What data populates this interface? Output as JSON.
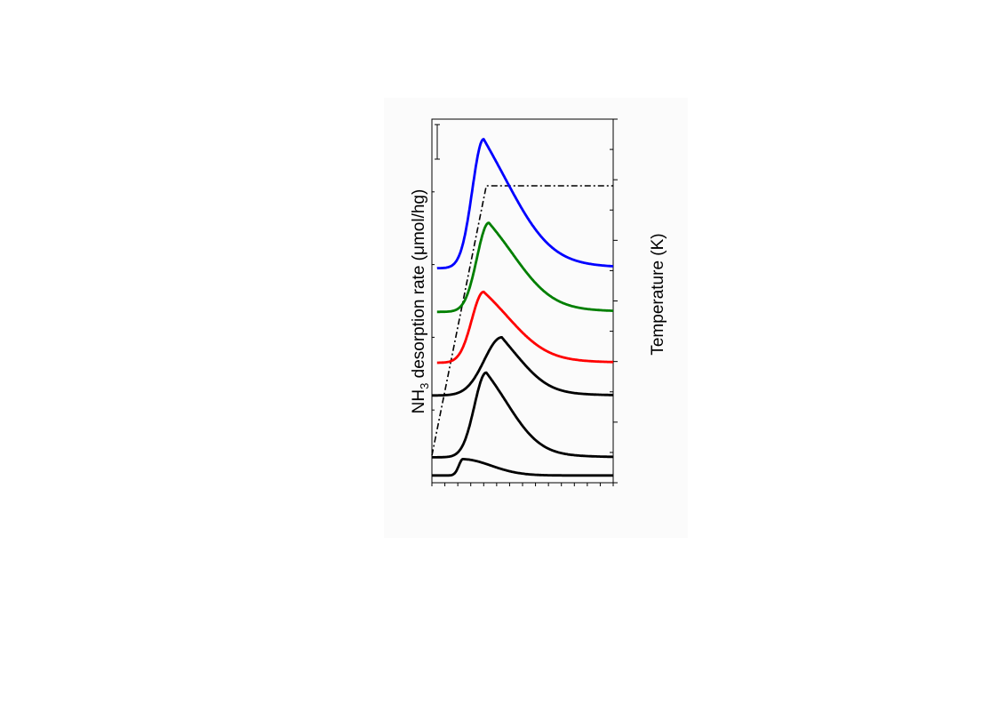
{
  "chart_data": {
    "type": "line",
    "ylabel_left_main": "NH",
    "ylabel_left_sub": "3",
    "ylabel_left_rest": " desorption rate (",
    "ylabel_left_mu": "μ",
    "ylabel_left_end": "mol/hg)",
    "ylabel_right": "Temperature (K)",
    "xlim": [
      0,
      70
    ],
    "ylim": [
      0,
      100
    ],
    "y2lim": [
      0,
      12
    ],
    "x_minor_ticks": [
      0,
      5,
      10,
      15,
      20,
      25,
      30,
      35,
      40,
      45,
      50,
      55,
      60,
      65,
      70
    ],
    "y2_major_ticks": [
      0,
      2,
      4,
      6,
      8,
      10,
      12
    ],
    "y2_minor_ticks": [
      1,
      3,
      5,
      7,
      9,
      11
    ],
    "left_ticks": [
      0,
      20,
      40,
      60,
      80,
      100
    ],
    "scale_bar": {
      "y_top": 98.5,
      "y_bottom": 89
    },
    "series": [
      {
        "color": "#0000ff",
        "baseline": 59,
        "start": 2,
        "peak_x": 20,
        "peak_h": 35.5,
        "sigma_l": 4.4,
        "tau": 14,
        "mix": 0.5,
        "tail": 2.2
      },
      {
        "color": "#007f00",
        "baseline": 47,
        "start": 2,
        "peak_x": 22,
        "peak_h": 24.5,
        "sigma_l": 4.6,
        "tau": 13,
        "mix": 0.55,
        "tail": 1.6
      },
      {
        "color": "#ff0000",
        "baseline": 33,
        "start": 2,
        "peak_x": 20,
        "peak_h": 19.5,
        "sigma_l": 4.6,
        "tau": 13,
        "mix": 0.55,
        "tail": 1.7
      },
      {
        "color": "#000000",
        "baseline": 24,
        "start": 0,
        "peak_x": 27,
        "peak_h": 16,
        "sigma_l": 6.8,
        "tau": 10,
        "mix": 0.45,
        "tail": 0
      },
      {
        "color": "#000000",
        "baseline": 7,
        "start": 0,
        "peak_x": 21,
        "peak_h": 23.3,
        "sigma_l": 4.6,
        "tau": 11,
        "mix": 0.55,
        "tail": 0
      },
      {
        "color": "#000000",
        "baseline": 2,
        "start": 0,
        "peak_x": 12,
        "peak_h": 4.5,
        "sigma_l": 1.6,
        "tau": 11,
        "mix": 0.95,
        "tail": 0
      }
    ],
    "temperature_profile": {
      "color": "#000000",
      "x": [
        0,
        21,
        70
      ],
      "y2": [
        0.9,
        9.8,
        9.8
      ]
    }
  }
}
